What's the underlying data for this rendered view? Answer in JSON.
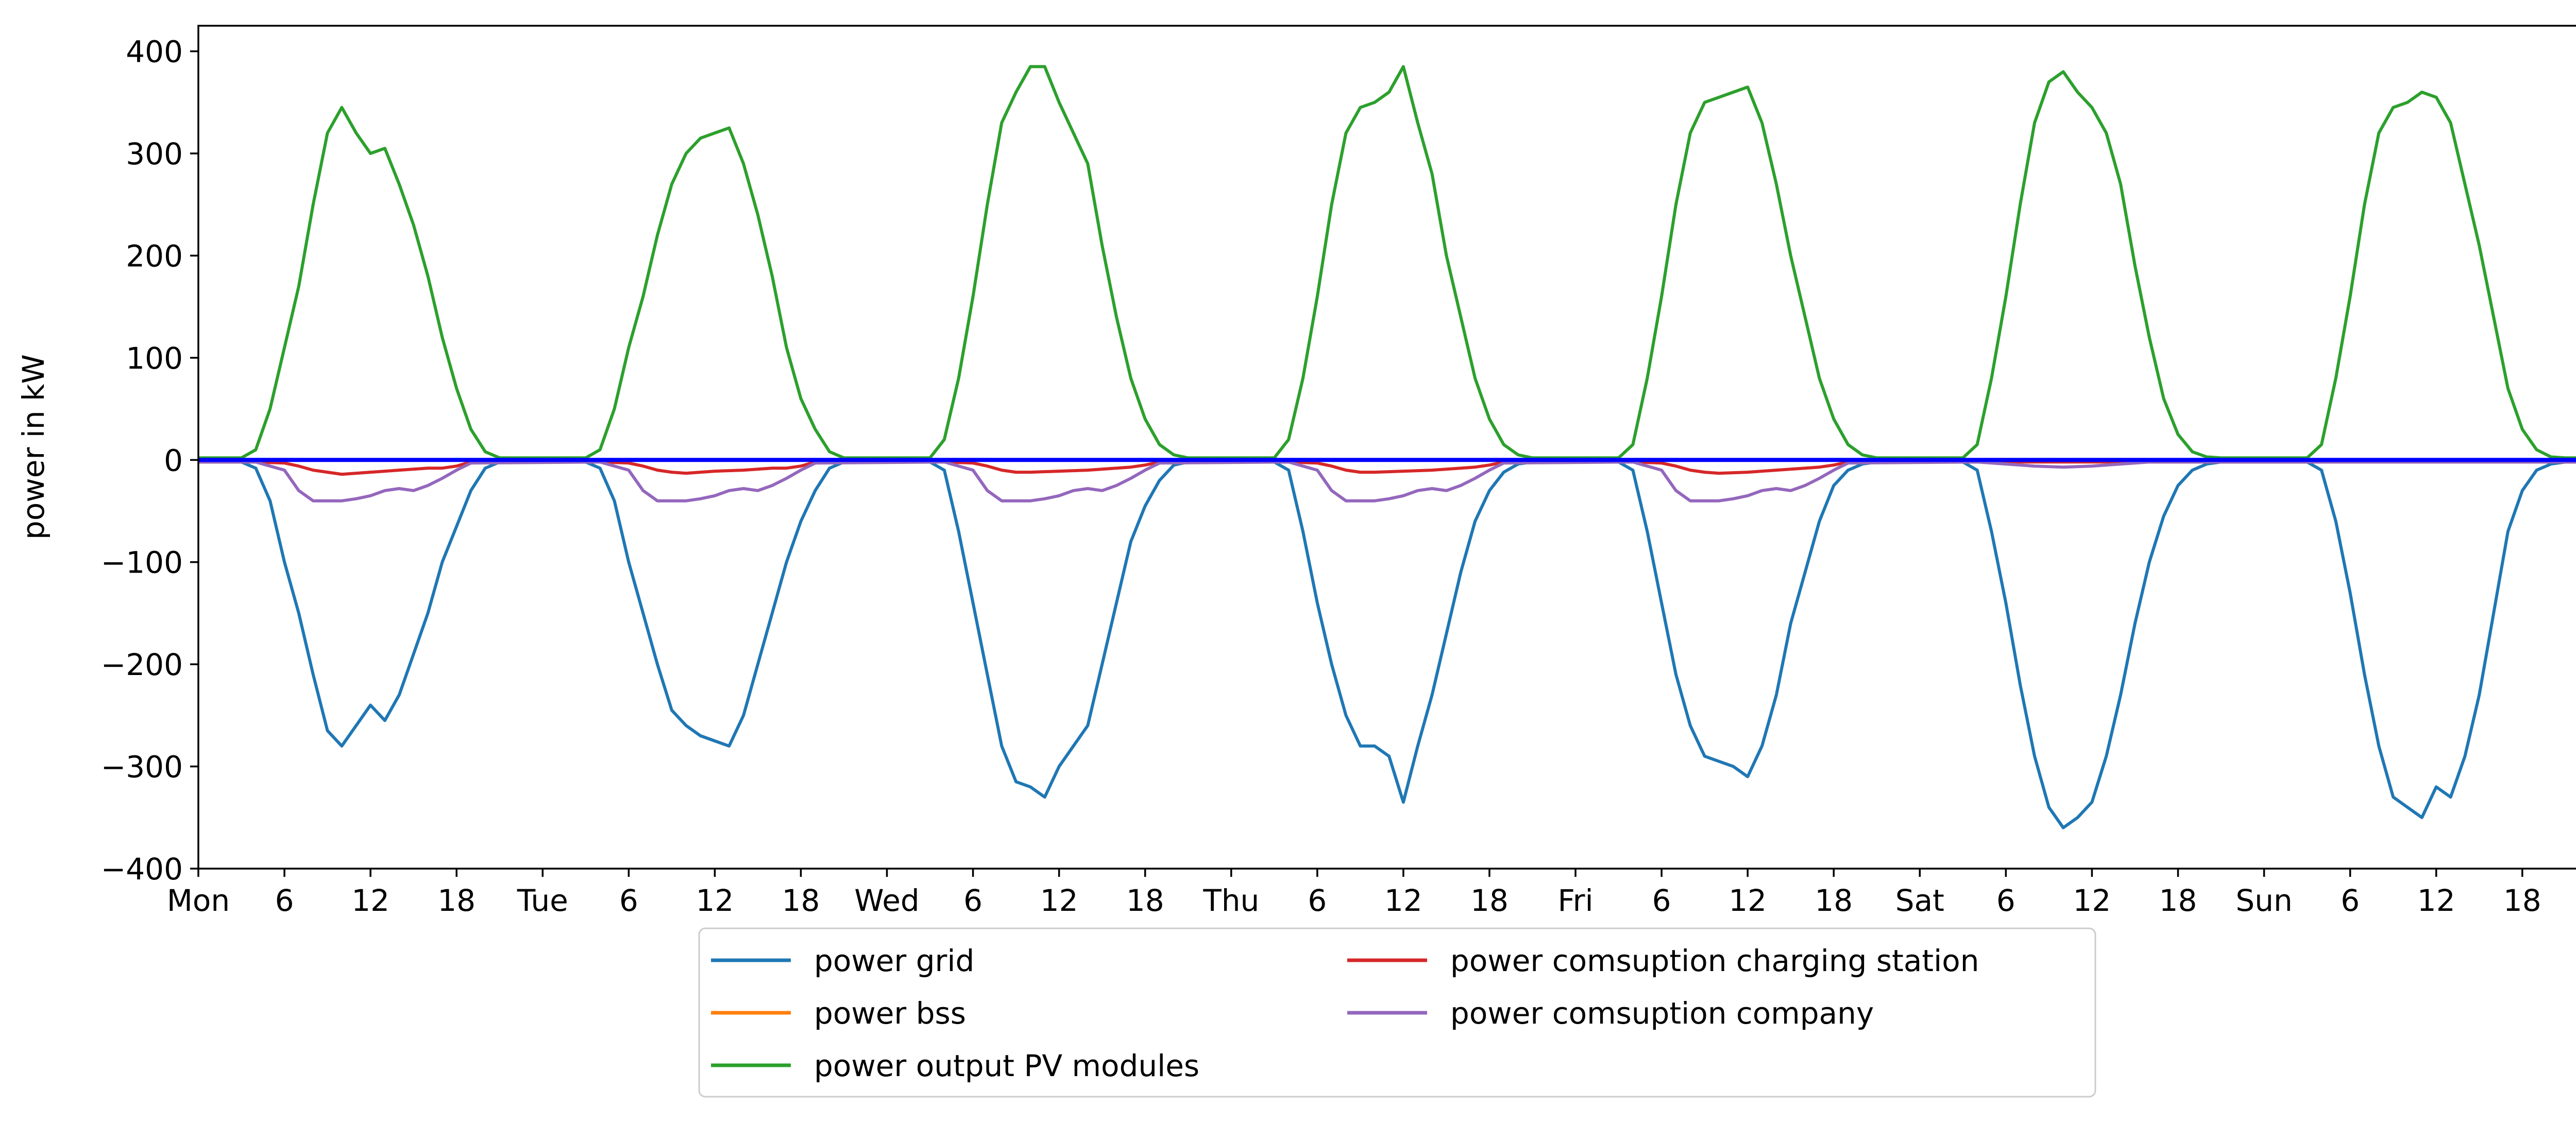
{
  "chart_data": {
    "type": "line",
    "title": "",
    "xlabel": "",
    "ylabel": "power in kW",
    "xlim": [
      0,
      167
    ],
    "ylim": [
      -400,
      425
    ],
    "y_ticks": [
      -400,
      -300,
      -200,
      -100,
      0,
      100,
      200,
      300,
      400
    ],
    "y_tick_labels": [
      "−400",
      "−300",
      "−200",
      "−100",
      "0",
      "100",
      "200",
      "300",
      "400"
    ],
    "x_ticks": [
      0,
      6,
      12,
      18,
      24,
      30,
      36,
      42,
      48,
      54,
      60,
      66,
      72,
      78,
      84,
      90,
      96,
      102,
      108,
      114,
      120,
      126,
      132,
      138,
      144,
      150,
      156,
      162
    ],
    "x_tick_labels": [
      "Mon",
      "6",
      "12",
      "18",
      "Tue",
      "6",
      "12",
      "18",
      "Wed",
      "6",
      "12",
      "18",
      "Thu",
      "6",
      "12",
      "18",
      "Fri",
      "6",
      "12",
      "18",
      "Sat",
      "6",
      "12",
      "18",
      "Sun",
      "6",
      "12",
      "18"
    ],
    "grid": false,
    "legend_position": "bottom-center, below axes, two columns",
    "series": [
      {
        "name": "power grid",
        "color": "#1f77b4",
        "x": [
          0,
          3,
          4,
          5,
          6,
          7,
          8,
          9,
          10,
          11,
          12,
          13,
          14,
          15,
          16,
          17,
          18,
          19,
          20,
          21,
          24,
          27,
          28,
          29,
          30,
          31,
          32,
          33,
          34,
          35,
          36,
          37,
          38,
          39,
          40,
          41,
          42,
          43,
          44,
          45,
          48,
          51,
          52,
          53,
          54,
          55,
          56,
          57,
          58,
          59,
          60,
          61,
          62,
          63,
          64,
          65,
          66,
          67,
          68,
          69,
          72,
          75,
          76,
          77,
          78,
          79,
          80,
          81,
          82,
          83,
          84,
          85,
          86,
          87,
          88,
          89,
          90,
          91,
          92,
          93,
          96,
          99,
          100,
          101,
          102,
          103,
          104,
          105,
          106,
          107,
          108,
          109,
          110,
          111,
          112,
          113,
          114,
          115,
          116,
          117,
          120,
          123,
          124,
          125,
          126,
          127,
          128,
          129,
          130,
          131,
          132,
          133,
          134,
          135,
          136,
          137,
          138,
          139,
          140,
          141,
          144,
          147,
          148,
          149,
          150,
          151,
          152,
          153,
          154,
          155,
          156,
          157,
          158,
          159,
          160,
          161,
          162,
          163,
          164,
          165,
          167
        ],
        "y": [
          -2,
          -2,
          -8,
          -40,
          -100,
          -150,
          -210,
          -265,
          -280,
          -260,
          -240,
          -255,
          -230,
          -190,
          -150,
          -100,
          -65,
          -30,
          -8,
          -2,
          -2,
          -2,
          -8,
          -40,
          -100,
          -150,
          -200,
          -245,
          -260,
          -270,
          -275,
          -280,
          -250,
          -200,
          -150,
          -100,
          -60,
          -30,
          -8,
          -2,
          -2,
          -2,
          -10,
          -70,
          -140,
          -210,
          -280,
          -315,
          -320,
          -330,
          -300,
          -280,
          -260,
          -200,
          -140,
          -80,
          -45,
          -20,
          -5,
          -2,
          -2,
          -2,
          -10,
          -70,
          -140,
          -200,
          -250,
          -280,
          -280,
          -290,
          -335,
          -280,
          -230,
          -170,
          -110,
          -60,
          -30,
          -12,
          -4,
          -2,
          -2,
          -2,
          -10,
          -70,
          -140,
          -210,
          -260,
          -290,
          -295,
          -300,
          -310,
          -280,
          -230,
          -160,
          -110,
          -60,
          -25,
          -10,
          -4,
          -2,
          -2,
          -2,
          -10,
          -70,
          -140,
          -220,
          -290,
          -340,
          -360,
          -350,
          -335,
          -290,
          -230,
          -160,
          -100,
          -55,
          -25,
          -10,
          -4,
          -2,
          -2,
          -2,
          -10,
          -60,
          -130,
          -210,
          -280,
          -330,
          -340,
          -350,
          -320,
          -330,
          -290,
          -230,
          -150,
          -70,
          -30,
          -10,
          -4,
          -2,
          -2
        ]
      },
      {
        "name": "power bss",
        "color": "#ff7f0e",
        "x": [
          0,
          167
        ],
        "y": [
          0,
          0
        ]
      },
      {
        "name": "power output PV modules",
        "color": "#2ca02c",
        "x": [
          0,
          3,
          4,
          5,
          6,
          7,
          8,
          9,
          10,
          11,
          12,
          13,
          14,
          15,
          16,
          17,
          18,
          19,
          20,
          21,
          24,
          27,
          28,
          29,
          30,
          31,
          32,
          33,
          34,
          35,
          36,
          37,
          38,
          39,
          40,
          41,
          42,
          43,
          44,
          45,
          48,
          51,
          52,
          53,
          54,
          55,
          56,
          57,
          58,
          59,
          60,
          61,
          62,
          63,
          64,
          65,
          66,
          67,
          68,
          69,
          72,
          75,
          76,
          77,
          78,
          79,
          80,
          81,
          82,
          83,
          84,
          85,
          86,
          87,
          88,
          89,
          90,
          91,
          92,
          93,
          96,
          99,
          100,
          101,
          102,
          103,
          104,
          105,
          106,
          107,
          108,
          109,
          110,
          111,
          112,
          113,
          114,
          115,
          116,
          117,
          120,
          123,
          124,
          125,
          126,
          127,
          128,
          129,
          130,
          131,
          132,
          133,
          134,
          135,
          136,
          137,
          138,
          139,
          140,
          141,
          144,
          147,
          148,
          149,
          150,
          151,
          152,
          153,
          154,
          155,
          156,
          157,
          158,
          159,
          160,
          161,
          162,
          163,
          164,
          165,
          167
        ],
        "y": [
          2,
          2,
          10,
          50,
          110,
          170,
          250,
          320,
          345,
          320,
          300,
          305,
          270,
          230,
          180,
          120,
          70,
          30,
          8,
          2,
          2,
          2,
          10,
          50,
          110,
          160,
          220,
          270,
          300,
          315,
          320,
          325,
          290,
          240,
          180,
          110,
          60,
          30,
          8,
          2,
          2,
          2,
          20,
          80,
          160,
          250,
          330,
          360,
          385,
          385,
          350,
          320,
          290,
          210,
          140,
          80,
          40,
          15,
          5,
          2,
          2,
          2,
          20,
          80,
          160,
          250,
          320,
          345,
          350,
          360,
          385,
          330,
          280,
          200,
          140,
          80,
          40,
          15,
          5,
          2,
          2,
          2,
          15,
          80,
          160,
          250,
          320,
          350,
          355,
          360,
          365,
          330,
          270,
          200,
          140,
          80,
          40,
          15,
          5,
          2,
          2,
          2,
          15,
          80,
          160,
          250,
          330,
          370,
          380,
          360,
          345,
          320,
          270,
          190,
          120,
          60,
          25,
          8,
          3,
          2,
          2,
          2,
          15,
          80,
          160,
          250,
          320,
          345,
          350,
          360,
          355,
          330,
          270,
          210,
          140,
          70,
          30,
          10,
          3,
          2,
          2
        ]
      },
      {
        "name": "power comsuption charging station",
        "color": "#d62728",
        "x": [
          0,
          4,
          6,
          7,
          8,
          9,
          10,
          12,
          14,
          16,
          17,
          18,
          19,
          28,
          30,
          31,
          32,
          33,
          34,
          36,
          38,
          40,
          41,
          42,
          43,
          52,
          54,
          55,
          56,
          57,
          58,
          60,
          62,
          64,
          65,
          66,
          67,
          76,
          78,
          79,
          80,
          81,
          82,
          84,
          86,
          88,
          89,
          90,
          91,
          100,
          102,
          103,
          104,
          105,
          106,
          108,
          110,
          112,
          113,
          114,
          115,
          167
        ],
        "y": [
          -2,
          -2,
          -3,
          -6,
          -10,
          -12,
          -14,
          -12,
          -10,
          -8,
          -8,
          -6,
          -2,
          -2,
          -3,
          -6,
          -10,
          -12,
          -13,
          -11,
          -10,
          -8,
          -8,
          -6,
          -2,
          -2,
          -3,
          -6,
          -10,
          -12,
          -12,
          -11,
          -10,
          -8,
          -7,
          -5,
          -2,
          -2,
          -3,
          -6,
          -10,
          -12,
          -12,
          -11,
          -10,
          -8,
          -7,
          -5,
          -2,
          -2,
          -3,
          -6,
          -10,
          -12,
          -13,
          -12,
          -10,
          -8,
          -7,
          -5,
          -2,
          -2
        ]
      },
      {
        "name": "power comsuption company",
        "color": "#9467bd",
        "x": [
          0,
          4,
          6,
          7,
          8,
          9,
          10,
          11,
          12,
          13,
          14,
          15,
          16,
          17,
          18,
          19,
          28,
          30,
          31,
          32,
          33,
          34,
          35,
          36,
          37,
          38,
          39,
          40,
          41,
          42,
          43,
          52,
          54,
          55,
          56,
          57,
          58,
          59,
          60,
          61,
          62,
          63,
          64,
          65,
          66,
          67,
          76,
          78,
          79,
          80,
          81,
          82,
          83,
          84,
          85,
          86,
          87,
          88,
          89,
          90,
          91,
          100,
          102,
          103,
          104,
          105,
          106,
          107,
          108,
          109,
          110,
          111,
          112,
          113,
          114,
          115,
          124,
          126,
          128,
          130,
          132,
          134,
          136,
          167
        ],
        "y": [
          -2,
          -2,
          -10,
          -30,
          -40,
          -40,
          -40,
          -38,
          -35,
          -30,
          -28,
          -30,
          -25,
          -18,
          -10,
          -3,
          -2,
          -10,
          -30,
          -40,
          -40,
          -40,
          -38,
          -35,
          -30,
          -28,
          -30,
          -25,
          -18,
          -10,
          -3,
          -2,
          -10,
          -30,
          -40,
          -40,
          -40,
          -38,
          -35,
          -30,
          -28,
          -30,
          -25,
          -18,
          -10,
          -3,
          -2,
          -10,
          -30,
          -40,
          -40,
          -40,
          -38,
          -35,
          -30,
          -28,
          -30,
          -25,
          -18,
          -10,
          -3,
          -2,
          -10,
          -30,
          -40,
          -40,
          -40,
          -38,
          -35,
          -30,
          -28,
          -30,
          -25,
          -18,
          -10,
          -3,
          -2,
          -4,
          -6,
          -7,
          -6,
          -4,
          -2,
          -2
        ]
      },
      {
        "color": "#0000ff",
        "x": [
          0,
          167
        ],
        "y": [
          0,
          0
        ]
      }
    ]
  }
}
